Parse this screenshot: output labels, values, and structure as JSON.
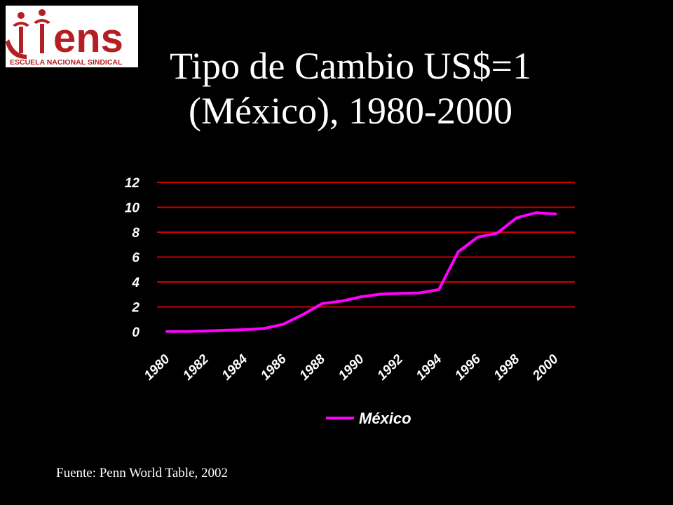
{
  "logo": {
    "wordmark": "ens",
    "subtitle": "ESCUELA NACIONAL SINDICAL",
    "color": "#b41f24"
  },
  "title": {
    "line1": "Tipo de Cambio US$=1",
    "line2": "(México), 1980-2000"
  },
  "source": "Fuente: Penn World Table, 2002",
  "colors": {
    "background": "#000000",
    "gridline": "#cc0000",
    "series": "#ff00ff",
    "text": "#ffffff"
  },
  "chart_data": {
    "type": "line",
    "title": "",
    "xlabel": "",
    "ylabel": "",
    "ylim": [
      0,
      12
    ],
    "yticks": [
      "0",
      "2",
      "4",
      "6",
      "8",
      "10",
      "12"
    ],
    "xtick_labels": [
      "1980",
      "1982",
      "1984",
      "1986",
      "1988",
      "1990",
      "1992",
      "1994",
      "1996",
      "1998",
      "2000"
    ],
    "grid": true,
    "legend_position": "bottom",
    "x": [
      1980,
      1981,
      1982,
      1983,
      1984,
      1985,
      1986,
      1987,
      1988,
      1989,
      1990,
      1991,
      1992,
      1993,
      1994,
      1995,
      1996,
      1997,
      1998,
      1999,
      2000
    ],
    "series": [
      {
        "name": "México",
        "values": [
          0.02,
          0.02,
          0.06,
          0.12,
          0.17,
          0.26,
          0.61,
          1.38,
          2.27,
          2.46,
          2.81,
          3.02,
          3.09,
          3.12,
          3.39,
          6.42,
          7.6,
          7.92,
          9.15,
          9.56,
          9.46
        ]
      }
    ]
  }
}
